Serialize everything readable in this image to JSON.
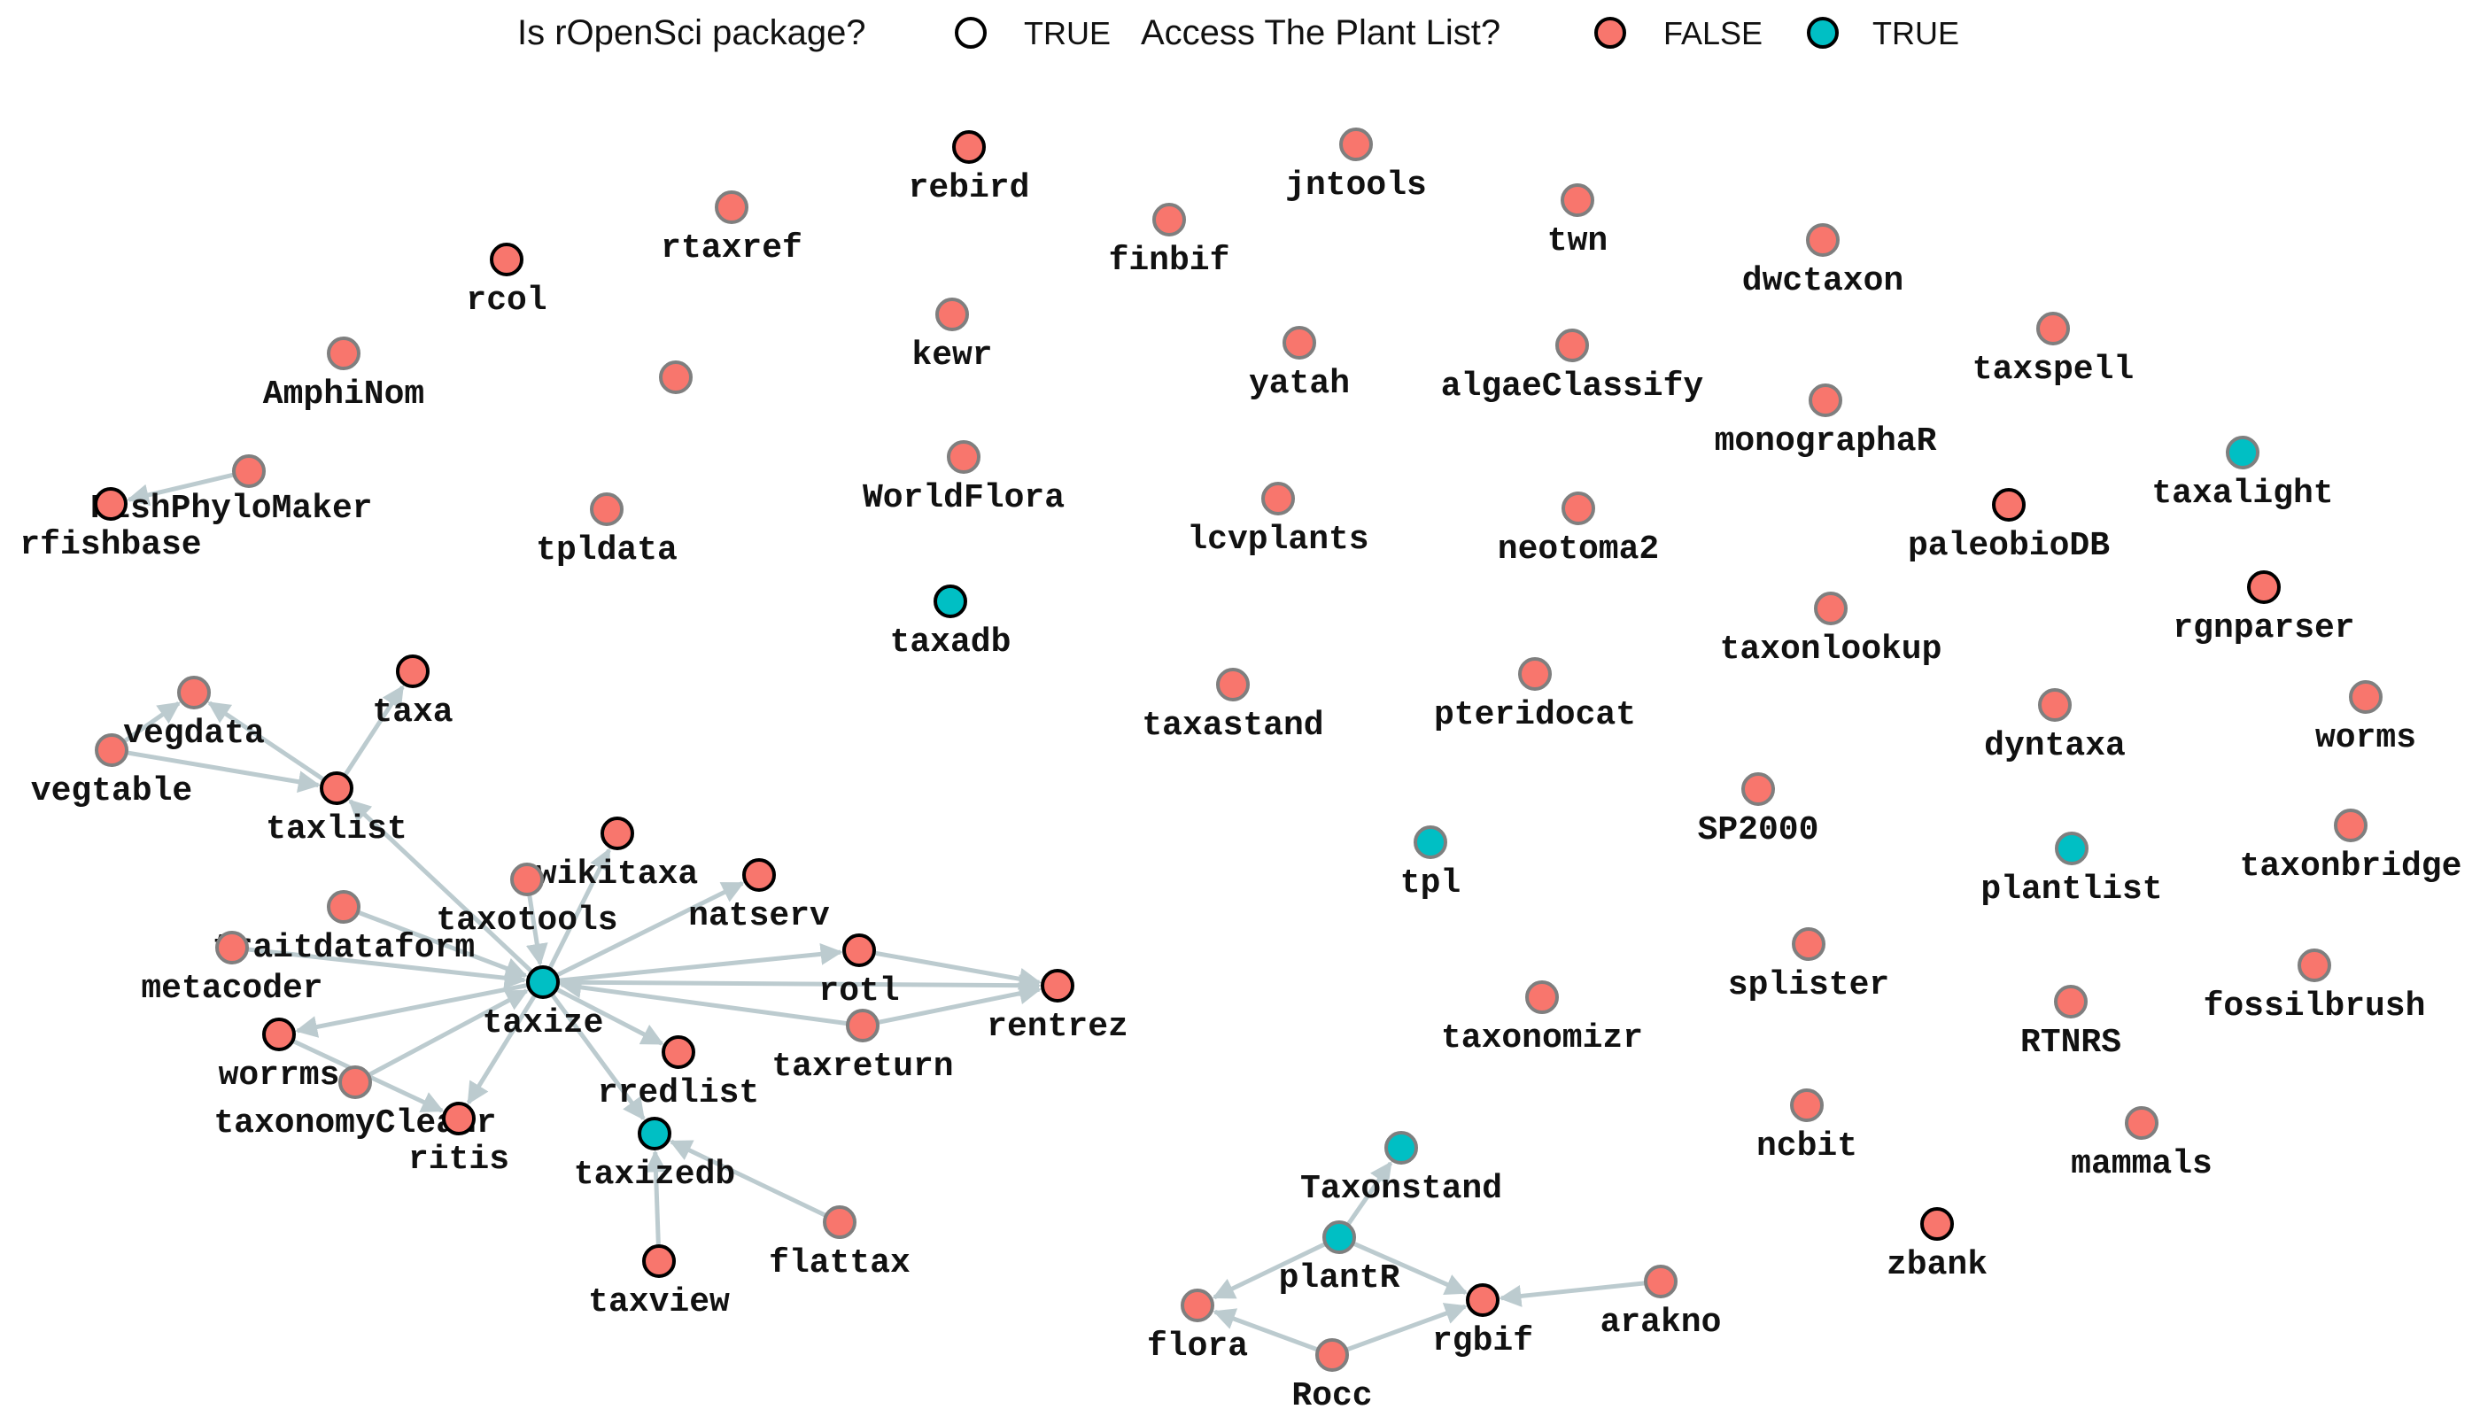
{
  "legend": {
    "ropensci_title": "Is rOpenSci package?",
    "ropensci_true": "TRUE",
    "plantlist_title": "Access The Plant List?",
    "plantlist_false": "FALSE",
    "plantlist_true": "TRUE"
  },
  "colors": {
    "false_fill": "#f8766d",
    "true_fill": "#00bfc4",
    "ropensci_stroke": "#000000",
    "non_ropensci_stroke": "#7f7f7f",
    "edge": "#bccbcf"
  },
  "nodes": [
    {
      "id": "rebird",
      "label": "rebird",
      "plantlist": false,
      "ropensci": true
    },
    {
      "id": "jntools",
      "label": "jntools",
      "plantlist": false,
      "ropensci": false
    },
    {
      "id": "finbif",
      "label": "finbif",
      "plantlist": false,
      "ropensci": false
    },
    {
      "id": "twn",
      "label": "twn",
      "plantlist": false,
      "ropensci": false
    },
    {
      "id": "rtaxref",
      "label": "rtaxref",
      "plantlist": false,
      "ropensci": false
    },
    {
      "id": "dwctaxon",
      "label": "dwctaxon",
      "plantlist": false,
      "ropensci": false
    },
    {
      "id": "rcol",
      "label": "rcol",
      "plantlist": false,
      "ropensci": true
    },
    {
      "id": "kewr",
      "label": "kewr",
      "plantlist": false,
      "ropensci": false
    },
    {
      "id": "yatah",
      "label": "yatah",
      "plantlist": false,
      "ropensci": false
    },
    {
      "id": "algaeClassify",
      "label": "algaeClassify",
      "plantlist": false,
      "ropensci": false
    },
    {
      "id": "taxspell",
      "label": "taxspell",
      "plantlist": false,
      "ropensci": false
    },
    {
      "id": "AmphiNom",
      "label": "AmphiNom",
      "plantlist": false,
      "ropensci": false
    },
    {
      "id": "unlabeled",
      "label": "",
      "plantlist": false,
      "ropensci": false
    },
    {
      "id": "monographaR",
      "label": "monographaR",
      "plantlist": false,
      "ropensci": false
    },
    {
      "id": "taxalight",
      "label": "taxalight",
      "plantlist": true,
      "ropensci": false
    },
    {
      "id": "FishPhyloMaker",
      "label": "FishPhyloMaker",
      "plantlist": false,
      "ropensci": false
    },
    {
      "id": "rfishbase",
      "label": "rfishbase",
      "plantlist": false,
      "ropensci": true
    },
    {
      "id": "tpldata",
      "label": "tpldata",
      "plantlist": false,
      "ropensci": false
    },
    {
      "id": "WorldFlora",
      "label": "WorldFlora",
      "plantlist": false,
      "ropensci": false
    },
    {
      "id": "lcvplants",
      "label": "lcvplants",
      "plantlist": false,
      "ropensci": false
    },
    {
      "id": "neotoma2",
      "label": "neotoma2",
      "plantlist": false,
      "ropensci": false
    },
    {
      "id": "paleobioDB",
      "label": "paleobioDB",
      "plantlist": false,
      "ropensci": true
    },
    {
      "id": "taxadb",
      "label": "taxadb",
      "plantlist": true,
      "ropensci": true
    },
    {
      "id": "rgnparser",
      "label": "rgnparser",
      "plantlist": false,
      "ropensci": true
    },
    {
      "id": "taxonlookup",
      "label": "taxonlookup",
      "plantlist": false,
      "ropensci": false
    },
    {
      "id": "taxa",
      "label": "taxa",
      "plantlist": false,
      "ropensci": true
    },
    {
      "id": "vegdata",
      "label": "vegdata",
      "plantlist": false,
      "ropensci": false
    },
    {
      "id": "taxastand",
      "label": "taxastand",
      "plantlist": false,
      "ropensci": false
    },
    {
      "id": "pteridocat",
      "label": "pteridocat",
      "plantlist": false,
      "ropensci": false
    },
    {
      "id": "dyntaxa",
      "label": "dyntaxa",
      "plantlist": false,
      "ropensci": false
    },
    {
      "id": "worms",
      "label": "worms",
      "plantlist": false,
      "ropensci": false
    },
    {
      "id": "vegtable",
      "label": "vegtable",
      "plantlist": false,
      "ropensci": false
    },
    {
      "id": "taxlist",
      "label": "taxlist",
      "plantlist": false,
      "ropensci": true
    },
    {
      "id": "SP2000",
      "label": "SP2000",
      "plantlist": false,
      "ropensci": false
    },
    {
      "id": "wikitaxa",
      "label": "wikitaxa",
      "plantlist": false,
      "ropensci": true
    },
    {
      "id": "tpl",
      "label": "tpl",
      "plantlist": true,
      "ropensci": false
    },
    {
      "id": "plantlist",
      "label": "plantlist",
      "plantlist": true,
      "ropensci": false
    },
    {
      "id": "taxonbridge",
      "label": "taxonbridge",
      "plantlist": false,
      "ropensci": false
    },
    {
      "id": "taxotools",
      "label": "taxotools",
      "plantlist": false,
      "ropensci": false
    },
    {
      "id": "natserv",
      "label": "natserv",
      "plantlist": false,
      "ropensci": true
    },
    {
      "id": "traitdataform",
      "label": "traitdataform",
      "plantlist": false,
      "ropensci": false
    },
    {
      "id": "rotl",
      "label": "rotl",
      "plantlist": false,
      "ropensci": true
    },
    {
      "id": "splister",
      "label": "splister",
      "plantlist": false,
      "ropensci": false
    },
    {
      "id": "fossilbrush",
      "label": "fossilbrush",
      "plantlist": false,
      "ropensci": false
    },
    {
      "id": "metacoder",
      "label": "metacoder",
      "plantlist": false,
      "ropensci": false
    },
    {
      "id": "taxize",
      "label": "taxize",
      "plantlist": true,
      "ropensci": true
    },
    {
      "id": "rentrez",
      "label": "rentrez",
      "plantlist": false,
      "ropensci": true
    },
    {
      "id": "taxonomizr",
      "label": "taxonomizr",
      "plantlist": false,
      "ropensci": false
    },
    {
      "id": "RTNRS",
      "label": "RTNRS",
      "plantlist": false,
      "ropensci": false
    },
    {
      "id": "worrms",
      "label": "worrms",
      "plantlist": false,
      "ropensci": true
    },
    {
      "id": "taxreturn",
      "label": "taxreturn",
      "plantlist": false,
      "ropensci": false
    },
    {
      "id": "rredlist",
      "label": "rredlist",
      "plantlist": false,
      "ropensci": true
    },
    {
      "id": "taxonomyCleanr",
      "label": "taxonomyCleanr",
      "plantlist": false,
      "ropensci": false
    },
    {
      "id": "ritis",
      "label": "ritis",
      "plantlist": false,
      "ropensci": true
    },
    {
      "id": "ncbit",
      "label": "ncbit",
      "plantlist": false,
      "ropensci": false
    },
    {
      "id": "mammals",
      "label": "mammals",
      "plantlist": false,
      "ropensci": false
    },
    {
      "id": "taxizedb",
      "label": "taxizedb",
      "plantlist": true,
      "ropensci": true
    },
    {
      "id": "Taxonstand",
      "label": "Taxonstand",
      "plantlist": true,
      "ropensci": false
    },
    {
      "id": "flattax",
      "label": "flattax",
      "plantlist": false,
      "ropensci": false
    },
    {
      "id": "zbank",
      "label": "zbank",
      "plantlist": false,
      "ropensci": true
    },
    {
      "id": "taxview",
      "label": "taxview",
      "plantlist": false,
      "ropensci": true
    },
    {
      "id": "plantR",
      "label": "plantR",
      "plantlist": true,
      "ropensci": false
    },
    {
      "id": "arakno",
      "label": "arakno",
      "plantlist": false,
      "ropensci": false
    },
    {
      "id": "flora",
      "label": "flora",
      "plantlist": false,
      "ropensci": false
    },
    {
      "id": "rgbif",
      "label": "rgbif",
      "plantlist": false,
      "ropensci": true
    },
    {
      "id": "Rocc",
      "label": "Rocc",
      "plantlist": false,
      "ropensci": false
    }
  ],
  "edges": [
    [
      "FishPhyloMaker",
      "rfishbase"
    ],
    [
      "taxlist",
      "vegdata"
    ],
    [
      "vegtable",
      "vegdata"
    ],
    [
      "vegtable",
      "taxlist"
    ],
    [
      "taxlist",
      "taxa"
    ],
    [
      "taxize",
      "taxlist"
    ],
    [
      "taxize",
      "wikitaxa"
    ],
    [
      "taxize",
      "natserv"
    ],
    [
      "taxize",
      "rotl"
    ],
    [
      "taxize",
      "rentrez"
    ],
    [
      "taxize",
      "rredlist"
    ],
    [
      "taxize",
      "ritis"
    ],
    [
      "taxize",
      "worrms"
    ],
    [
      "taxize",
      "taxizedb"
    ],
    [
      "taxotools",
      "taxize"
    ],
    [
      "traitdataform",
      "taxize"
    ],
    [
      "metacoder",
      "taxize"
    ],
    [
      "taxonomyCleanr",
      "taxize"
    ],
    [
      "taxreturn",
      "taxize"
    ],
    [
      "rotl",
      "rentrez"
    ],
    [
      "taxreturn",
      "rentrez"
    ],
    [
      "worrms",
      "ritis"
    ],
    [
      "taxview",
      "taxizedb"
    ],
    [
      "flattax",
      "taxizedb"
    ],
    [
      "plantR",
      "Taxonstand"
    ],
    [
      "plantR",
      "flora"
    ],
    [
      "plantR",
      "rgbif"
    ],
    [
      "Rocc",
      "flora"
    ],
    [
      "Rocc",
      "rgbif"
    ],
    [
      "arakno",
      "rgbif"
    ]
  ]
}
